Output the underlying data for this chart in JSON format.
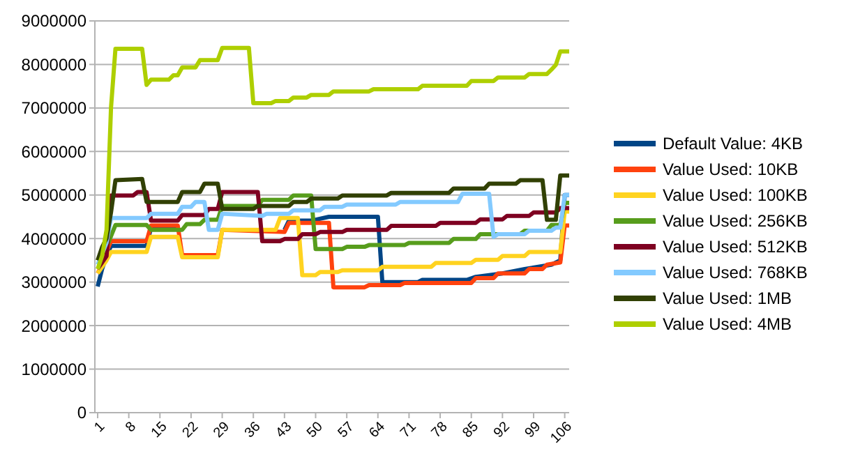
{
  "chart_data": {
    "type": "line",
    "xlim": [
      1,
      107
    ],
    "xticks": [
      1,
      8,
      15,
      22,
      29,
      36,
      43,
      50,
      57,
      64,
      71,
      78,
      85,
      92,
      99,
      106
    ],
    "ylim": [
      0,
      9000000
    ],
    "yticks": [
      0,
      1000000,
      2000000,
      3000000,
      4000000,
      5000000,
      6000000,
      7000000,
      8000000,
      9000000
    ],
    "grid": "y",
    "legend": "right",
    "marker": "none",
    "line_style": "solid",
    "series": [
      {
        "name": "Default Value: 4KB",
        "color": "#004586",
        "x": [
          1,
          2,
          3,
          4,
          12,
          13,
          19,
          20,
          28,
          29,
          43,
          44,
          49,
          53,
          64,
          65,
          73,
          74,
          84,
          86,
          92,
          97,
          103,
          105,
          106,
          107
        ],
        "values": [
          2900000,
          3300000,
          3600000,
          3830000,
          3830000,
          4250000,
          4250000,
          null,
          null,
          null,
          4200000,
          4410000,
          4410000,
          4500000,
          4500000,
          3000000,
          3000000,
          3050000,
          3050000,
          3120000,
          3200000,
          3300000,
          3400000,
          3500000,
          5000000,
          5000000
        ]
      },
      {
        "name": "Value Used: 10KB",
        "color": "#ff420e",
        "x": [
          1,
          2,
          3,
          4,
          12,
          13,
          19,
          20,
          28,
          29,
          43,
          44,
          53,
          54,
          61,
          62,
          69,
          70,
          85,
          86,
          90,
          91,
          97,
          98,
          101,
          102,
          105,
          106,
          107
        ],
        "values": [
          3200000,
          3400000,
          3700000,
          3940000,
          3940000,
          4300000,
          4300000,
          3620000,
          3620000,
          4200000,
          4150000,
          4360000,
          4360000,
          2880000,
          2880000,
          2930000,
          2930000,
          2980000,
          2980000,
          3090000,
          3090000,
          3200000,
          3200000,
          3300000,
          3300000,
          3400000,
          3450000,
          4300000,
          4300000
        ]
      },
      {
        "name": "Value Used: 100KB",
        "color": "#ffd320",
        "x": [
          1,
          3,
          4,
          12,
          13,
          19,
          20,
          28,
          29,
          41,
          42,
          46,
          47,
          50,
          51,
          55,
          56,
          64,
          65,
          76,
          77,
          85,
          86,
          91,
          92,
          97,
          98,
          105,
          106,
          107
        ],
        "values": [
          3200000,
          3500000,
          3690000,
          3690000,
          4040000,
          4040000,
          3570000,
          3570000,
          4200000,
          4200000,
          4470000,
          4470000,
          3160000,
          3160000,
          3230000,
          3230000,
          3270000,
          3270000,
          3350000,
          3350000,
          3440000,
          3440000,
          3510000,
          3510000,
          3600000,
          3600000,
          3690000,
          3690000,
          4620000,
          4620000
        ]
      },
      {
        "name": "Value Used: 256KB",
        "color": "#579d1c",
        "x": [
          1,
          3,
          5,
          12,
          13,
          20,
          21,
          24,
          25,
          28,
          29,
          37,
          38,
          44,
          45,
          49,
          50,
          56,
          57,
          61,
          62,
          70,
          71,
          80,
          81,
          86,
          87,
          96,
          97,
          102,
          103,
          105,
          106,
          107
        ],
        "values": [
          3500000,
          3800000,
          4310000,
          4310000,
          4200000,
          4200000,
          4330000,
          4330000,
          4430000,
          4430000,
          4750000,
          4750000,
          4890000,
          4890000,
          4990000,
          4990000,
          3760000,
          3760000,
          3810000,
          3810000,
          3850000,
          3850000,
          3900000,
          3900000,
          3990000,
          3990000,
          4100000,
          4100000,
          4180000,
          4180000,
          4310000,
          4310000,
          4820000,
          4820000
        ]
      },
      {
        "name": "Value Used: 512KB",
        "color": "#7e0021",
        "x": [
          1,
          3,
          4,
          9,
          10,
          12,
          13,
          19,
          20,
          25,
          26,
          28,
          29,
          37,
          38,
          42,
          43,
          46,
          47,
          50,
          51,
          56,
          57,
          66,
          67,
          77,
          78,
          86,
          87,
          92,
          93,
          98,
          99,
          104,
          105,
          107
        ],
        "values": [
          3300000,
          3600000,
          4990000,
          4990000,
          5070000,
          5070000,
          4410000,
          4410000,
          4540000,
          4540000,
          4680000,
          4680000,
          5070000,
          5070000,
          3940000,
          3940000,
          3990000,
          3990000,
          4100000,
          4100000,
          4150000,
          4150000,
          4200000,
          4200000,
          4290000,
          4290000,
          4360000,
          4360000,
          4440000,
          4440000,
          4520000,
          4520000,
          4600000,
          4600000,
          4700000,
          4700000
        ]
      },
      {
        "name": "Value Used: 768KB",
        "color": "#83caff",
        "x": [
          1,
          3,
          4,
          12,
          13,
          19,
          20,
          22,
          23,
          25,
          26,
          28,
          29,
          38,
          39,
          44,
          45,
          51,
          52,
          56,
          57,
          68,
          69,
          82,
          83,
          89,
          90,
          91,
          97,
          98,
          103,
          104,
          105,
          106,
          107
        ],
        "values": [
          3400000,
          3900000,
          4470000,
          4470000,
          4570000,
          4570000,
          4730000,
          4730000,
          4840000,
          4840000,
          4200000,
          4200000,
          4570000,
          4520000,
          4570000,
          4570000,
          4650000,
          4650000,
          4730000,
          4730000,
          4780000,
          4780000,
          4840000,
          4840000,
          5030000,
          5030000,
          4040000,
          4100000,
          4100000,
          4180000,
          4180000,
          4250000,
          4250000,
          5000000,
          5000000
        ]
      },
      {
        "name": "Value Used: 1MB",
        "color": "#314004",
        "x": [
          1,
          2,
          3,
          4,
          5,
          11,
          12,
          19,
          20,
          24,
          25,
          28,
          29,
          36,
          37,
          44,
          45,
          48,
          49,
          55,
          56,
          66,
          67,
          80,
          81,
          88,
          89,
          95,
          96,
          101,
          102,
          104,
          105,
          107
        ],
        "values": [
          3500000,
          3800000,
          4000000,
          4600000,
          5340000,
          5370000,
          4840000,
          4840000,
          5070000,
          5070000,
          5260000,
          5260000,
          4680000,
          4680000,
          4750000,
          4750000,
          4840000,
          4840000,
          4920000,
          4920000,
          4990000,
          4990000,
          5050000,
          5050000,
          5150000,
          5150000,
          5260000,
          5260000,
          5340000,
          5340000,
          4430000,
          4430000,
          5450000,
          5450000
        ]
      },
      {
        "name": "Value Used: 4MB",
        "color": "#aecf00",
        "x": [
          1,
          2,
          3,
          4,
          5,
          11,
          12,
          13,
          17,
          18,
          19,
          20,
          23,
          24,
          28,
          29,
          35,
          36,
          40,
          41,
          44,
          45,
          48,
          49,
          53,
          54,
          62,
          63,
          73,
          74,
          84,
          85,
          90,
          91,
          97,
          98,
          102,
          103,
          104,
          105,
          107
        ],
        "values": [
          3300000,
          3600000,
          4200000,
          7000000,
          8360000,
          8360000,
          7530000,
          7650000,
          7650000,
          7750000,
          7750000,
          7930000,
          7930000,
          8100000,
          8100000,
          8380000,
          8380000,
          7110000,
          7110000,
          7160000,
          7160000,
          7240000,
          7240000,
          7300000,
          7300000,
          7380000,
          7380000,
          7430000,
          7430000,
          7510000,
          7510000,
          7620000,
          7620000,
          7700000,
          7700000,
          7780000,
          7780000,
          7880000,
          7990000,
          8300000,
          8300000
        ]
      }
    ]
  }
}
